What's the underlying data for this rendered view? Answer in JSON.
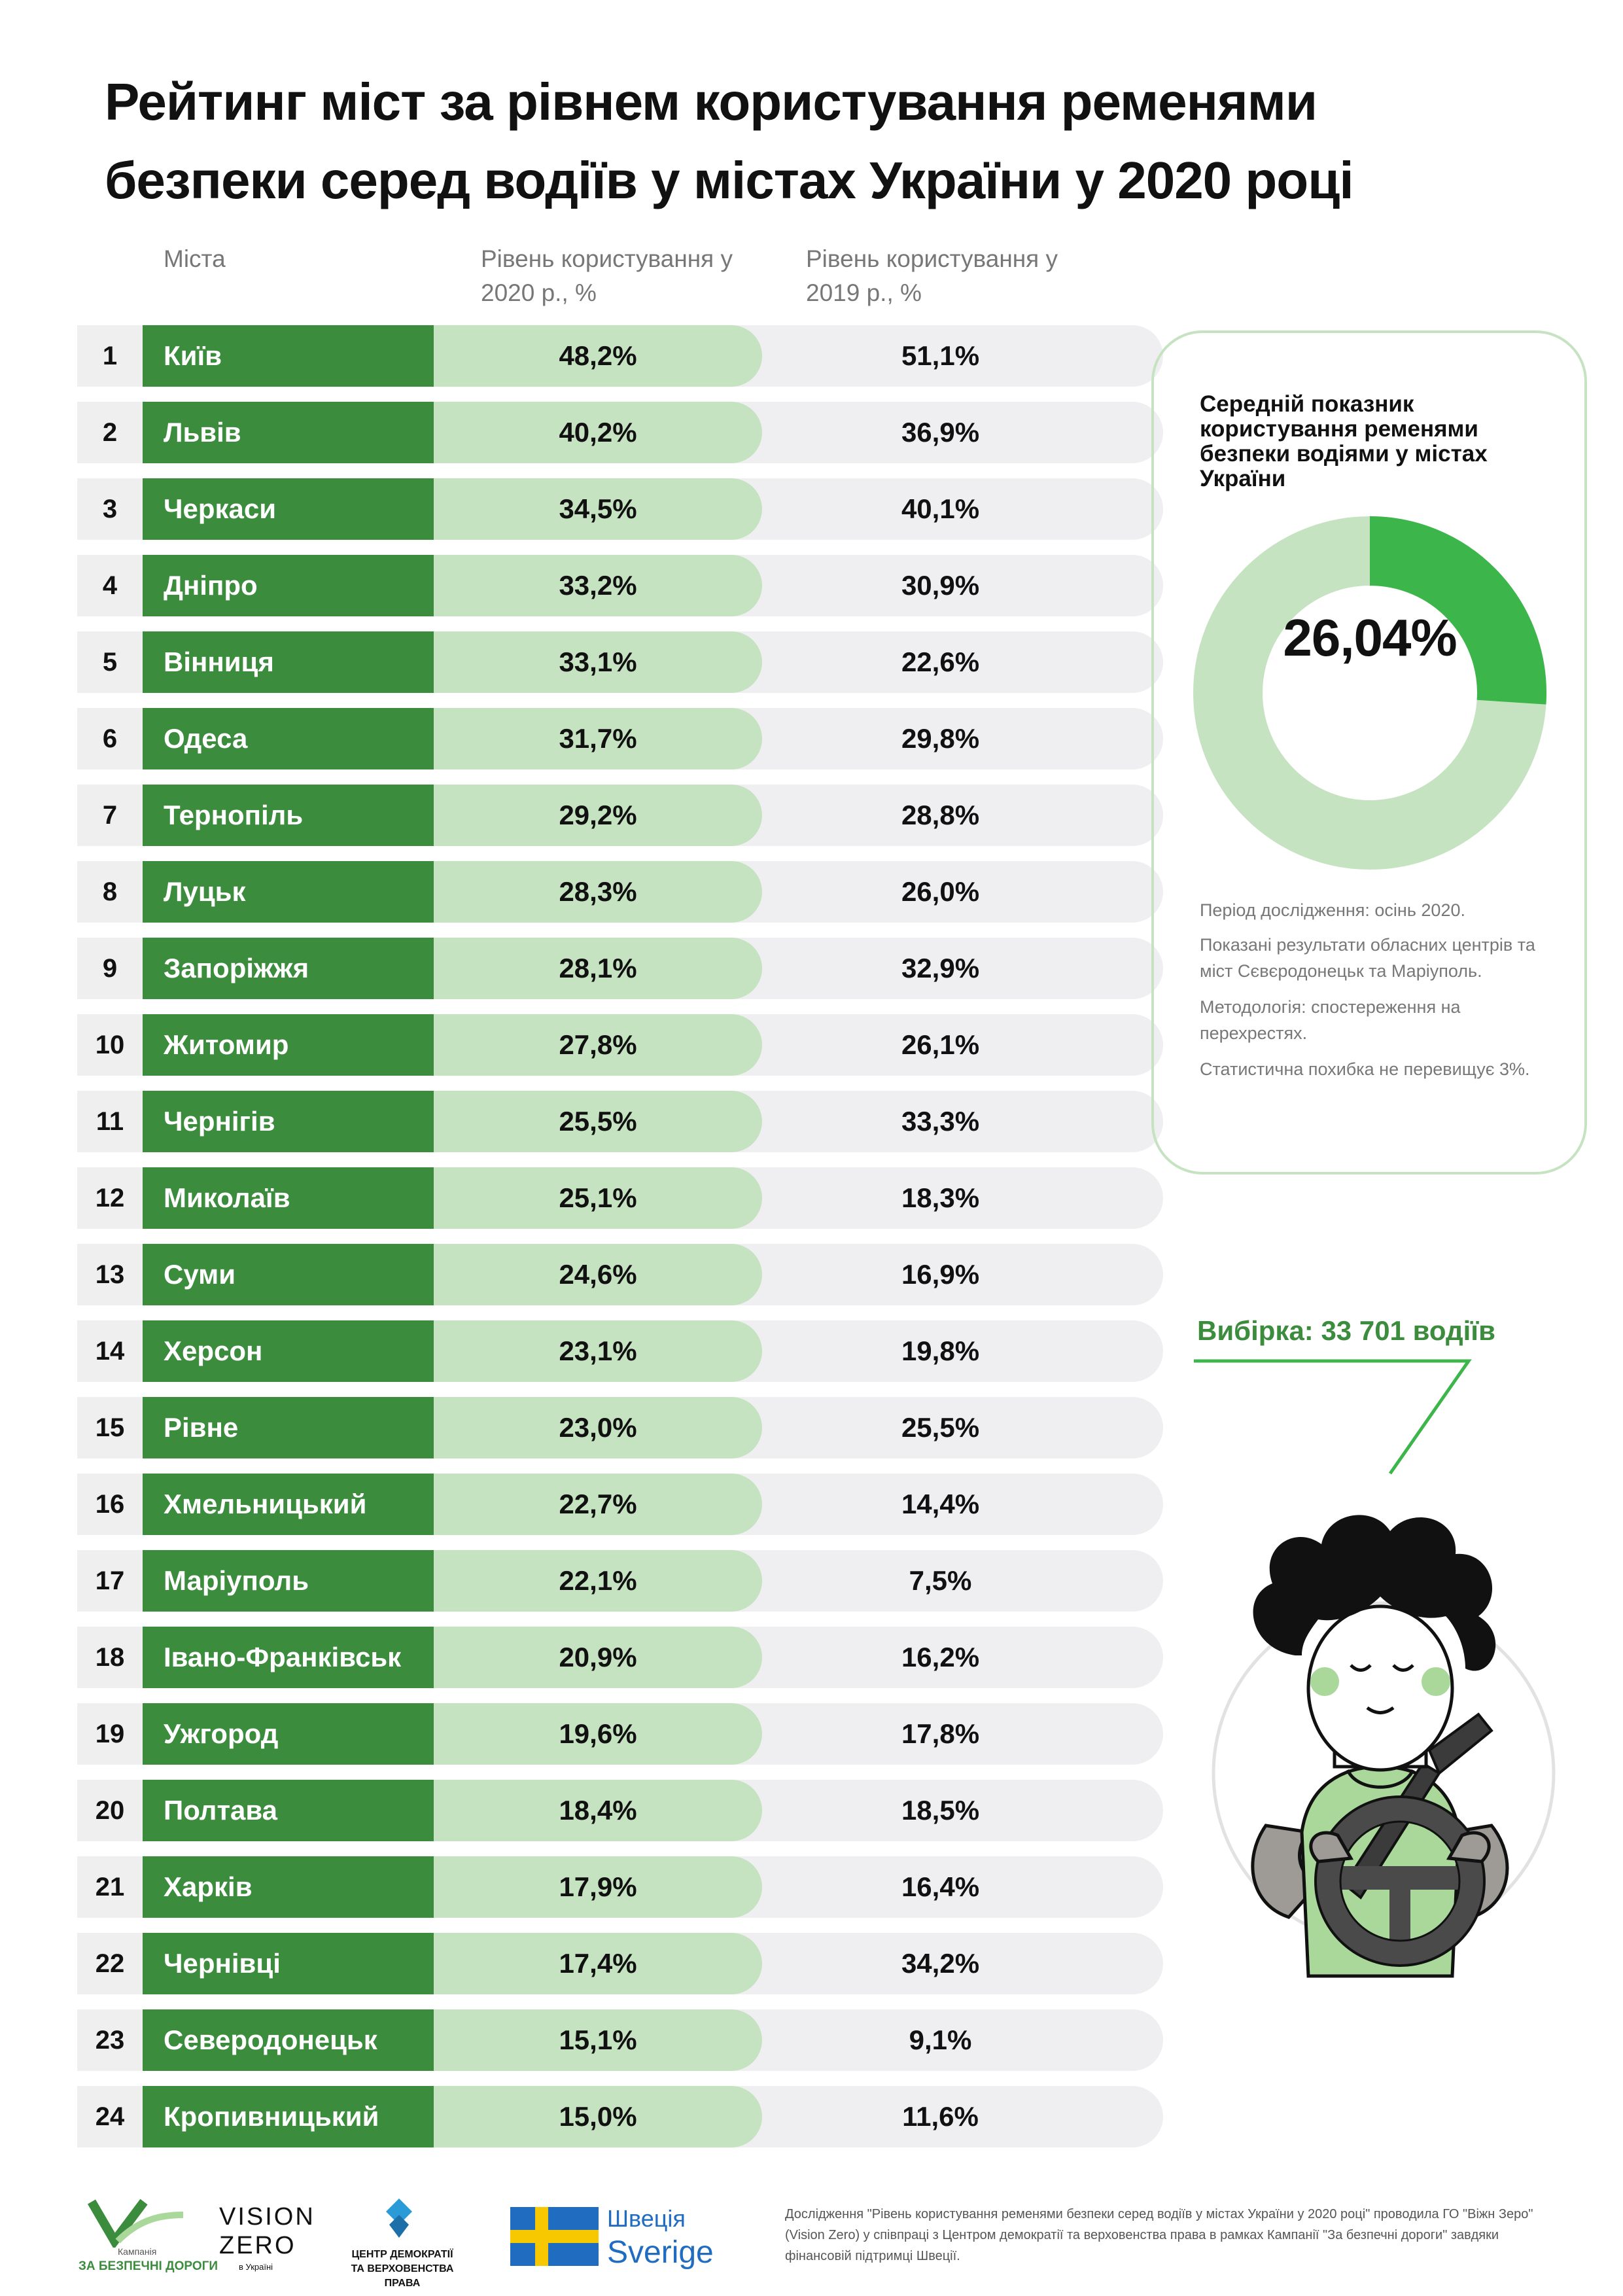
{
  "title": "Рейтинг міст за рівнем користування ременями безпеки серед водіїв у містах України у 2020 році",
  "columns": {
    "city": "Міста",
    "level_2020": "Рівень користування у 2020 р., %",
    "level_2019": "Рівень користування у 2019 р., %"
  },
  "chart_data": [
    {
      "type": "table",
      "title": "Рейтинг міст за рівнем користування ременями безпеки серед водіїв у містах України у 2020 році",
      "columns": [
        "Міста",
        "Рівень користування у 2020 р., %",
        "Рівень користування у 2019 р., %"
      ],
      "rows": [
        {
          "rank": "1",
          "city": "Київ",
          "v2020": "48,2%",
          "v2019": "51,1%"
        },
        {
          "rank": "2",
          "city": "Львів",
          "v2020": "40,2%",
          "v2019": "36,9%"
        },
        {
          "rank": "3",
          "city": "Черкаси",
          "v2020": "34,5%",
          "v2019": "40,1%"
        },
        {
          "rank": "4",
          "city": "Дніпро",
          "v2020": "33,2%",
          "v2019": "30,9%"
        },
        {
          "rank": "5",
          "city": "Вінниця",
          "v2020": "33,1%",
          "v2019": "22,6%"
        },
        {
          "rank": "6",
          "city": "Одеса",
          "v2020": "31,7%",
          "v2019": "29,8%"
        },
        {
          "rank": "7",
          "city": "Тернопіль",
          "v2020": "29,2%",
          "v2019": "28,8%"
        },
        {
          "rank": "8",
          "city": "Луцьк",
          "v2020": "28,3%",
          "v2019": "26,0%"
        },
        {
          "rank": "9",
          "city": "Запоріжжя",
          "v2020": "28,1%",
          "v2019": "32,9%"
        },
        {
          "rank": "10",
          "city": "Житомир",
          "v2020": "27,8%",
          "v2019": "26,1%"
        },
        {
          "rank": "11",
          "city": "Чернігів",
          "v2020": "25,5%",
          "v2019": "33,3%"
        },
        {
          "rank": "12",
          "city": "Миколаїв",
          "v2020": "25,1%",
          "v2019": "18,3%"
        },
        {
          "rank": "13",
          "city": "Суми",
          "v2020": "24,6%",
          "v2019": "16,9%"
        },
        {
          "rank": "14",
          "city": "Херсон",
          "v2020": "23,1%",
          "v2019": "19,8%"
        },
        {
          "rank": "15",
          "city": "Рівне",
          "v2020": "23,0%",
          "v2019": "25,5%"
        },
        {
          "rank": "16",
          "city": "Хмельницький",
          "v2020": "22,7%",
          "v2019": "14,4%"
        },
        {
          "rank": "17",
          "city": "Маріуполь",
          "v2020": "22,1%",
          "v2019": "7,5%"
        },
        {
          "rank": "18",
          "city": "Івано-Франківськ",
          "v2020": "20,9%",
          "v2019": "16,2%"
        },
        {
          "rank": "19",
          "city": "Ужгород",
          "v2020": "19,6%",
          "v2019": "17,8%"
        },
        {
          "rank": "20",
          "city": "Полтава",
          "v2020": "18,4%",
          "v2019": "18,5%"
        },
        {
          "rank": "21",
          "city": "Харків",
          "v2020": "17,9%",
          "v2019": "16,4%"
        },
        {
          "rank": "22",
          "city": "Чернівці",
          "v2020": "17,4%",
          "v2019": "34,2%"
        },
        {
          "rank": "23",
          "city": "Северодонецьк",
          "v2020": "15,1%",
          "v2019": "9,1%"
        },
        {
          "rank": "24",
          "city": "Кропивницький",
          "v2020": "15,0%",
          "v2019": "11,6%"
        }
      ]
    },
    {
      "type": "pie",
      "title": "Середній показник користування ременями безпеки водіями у містах України",
      "value": 26.04,
      "label": "26,04%",
      "colors": {
        "value": "#3cb54a",
        "rest": "#c6e3c1"
      }
    }
  ],
  "panel": {
    "notes": [
      "Період дослідження: осінь 2020.",
      "Показані результати обласних центрів та міст Сєвєродонецьк та Маріуполь.",
      "Методологія: спостереження на перехрестях.",
      "Статистична похибка не перевищує 3%."
    ]
  },
  "sample": {
    "label": "Вибірка:  33 701  водіїв"
  },
  "footer": {
    "logo_campaign_small": "Кампанія",
    "logo_campaign": "ЗА БЕЗПЕЧНІ ДОРОГИ",
    "logo_vision_1": "VISION",
    "logo_vision_2": "ZERO",
    "logo_vision_small": "в Україні",
    "logo_cdrl": "ЦЕНТР ДЕМОКРАТІЇ ТА ВЕРХОВЕНСТВА ПРАВА",
    "logo_sweden_1": "Швеція",
    "logo_sweden_2": "Sverige",
    "note": "Дослідження \"Рівень користування ременями безпеки серед водіїв у містах України у 2020 році\" проводила ГО \"Віжн Зеро\" (Vision Zero) у співпраці з Центром демократії та верховенства права в рамках Кампанії \"За безпечні дороги\" завдяки фінансовій підтримці Швеції."
  },
  "colors": {
    "dark_green": "#3c8c3e",
    "light_green": "#c6e3c1",
    "bright_green": "#3cb54a",
    "grey": "#efeff1"
  }
}
